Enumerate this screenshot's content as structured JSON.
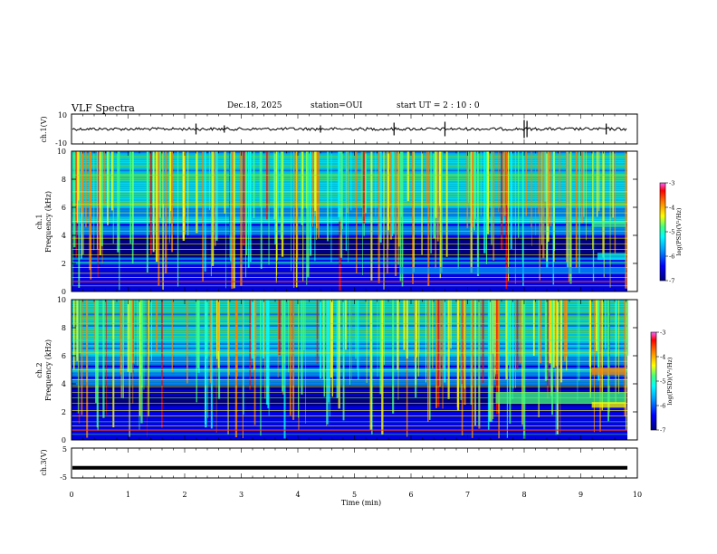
{
  "header": {
    "title": "VLF Spectra",
    "date": "Dec.18, 2025",
    "station": "station=OUI",
    "start": "start  UT =   2 : 10 : 0"
  },
  "chart_data": [
    {
      "type": "line",
      "panel": "ch1-waveform",
      "ylabel": "ch.1(V)",
      "ylim": [
        -10,
        10
      ],
      "yticks": [
        "10",
        "-10"
      ],
      "trace": "noisy signal around 0 V with spikes near 2.2, 5.7, 6.6, 8.0 min",
      "xlim": [
        0,
        10
      ]
    },
    {
      "type": "heatmap",
      "panel": "ch1-spectrogram",
      "ylabel": "ch.1\nFrequency (kHz)",
      "ylabel_line1": "ch.1",
      "ylabel_line2": "Frequency  (kHz)",
      "ylim": [
        0,
        10
      ],
      "yticks": [
        "0",
        "2",
        "4",
        "6",
        "8",
        "10"
      ],
      "xlim": [
        0,
        9.83
      ],
      "colorbar": {
        "label": "log(PSD)(V²/Hz)",
        "ticks": [
          "-3",
          "-4",
          "-5",
          "-6",
          "-7"
        ],
        "range": [
          -7,
          -3
        ]
      }
    },
    {
      "type": "heatmap",
      "panel": "ch2-spectrogram",
      "ylabel_line1": "ch.2",
      "ylabel_line2": "Frequency  (kHz)",
      "ylim": [
        0,
        10
      ],
      "yticks": [
        "0",
        "2",
        "4",
        "6",
        "8",
        "10"
      ],
      "xlim": [
        0,
        9.83
      ],
      "colorbar": {
        "label": "log(PSD)(V²/Hz)",
        "ticks": [
          "-3",
          "-4",
          "-5",
          "-6",
          "-7"
        ],
        "range": [
          -7,
          -3
        ]
      }
    },
    {
      "type": "line",
      "panel": "ch3-waveform",
      "ylabel": "ch.3(V)",
      "ylim": [
        -5,
        5
      ],
      "yticks": [
        "5",
        "-5"
      ],
      "trace_level": -1.6,
      "xlim": [
        0,
        10
      ],
      "xlabel": "Time  (min)",
      "xticks": [
        "0",
        "1",
        "2",
        "3",
        "4",
        "5",
        "6",
        "7",
        "8",
        "9",
        "10"
      ]
    }
  ],
  "colors": {
    "colormap": [
      "#000080",
      "#0000ff",
      "#00a0ff",
      "#00ffff",
      "#40ff80",
      "#ffff00",
      "#ff8000",
      "#ff0000",
      "#ff40ff"
    ]
  }
}
